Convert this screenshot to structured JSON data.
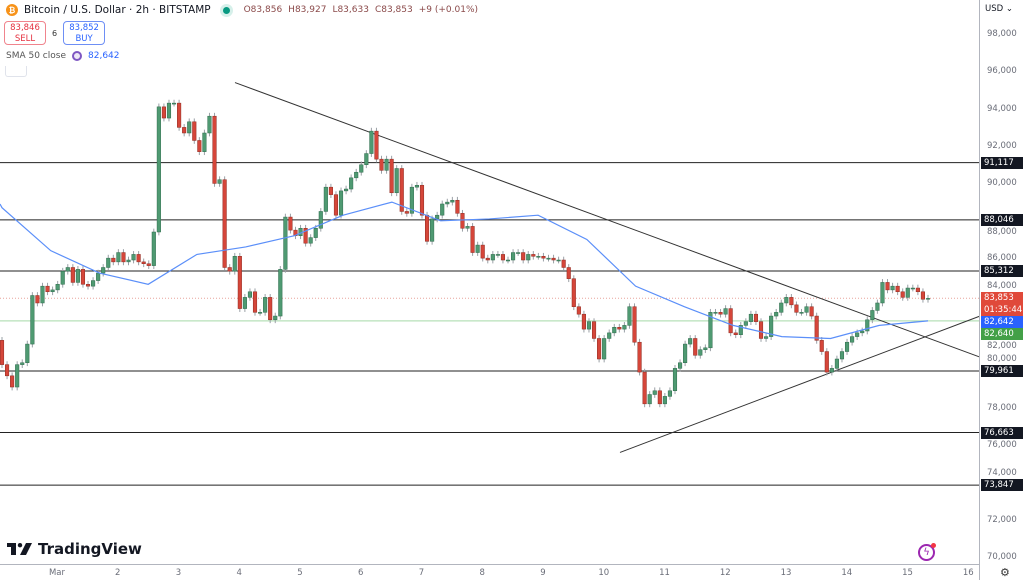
{
  "header": {
    "title": "Bitcoin / U.S. Dollar · 2h · BITSTAMP",
    "coin_icon": "bitcoin-icon",
    "open": "O83,856",
    "high": "H83,927",
    "low": "L83,633",
    "close": "C83,853",
    "change": "+9 (+0.01%)"
  },
  "trade": {
    "sell_price": "83,846",
    "sell_label": "SELL",
    "spread": "6",
    "buy_price": "83,852",
    "buy_label": "BUY"
  },
  "indicator": {
    "label": "SMA 50 close",
    "value": "82,642"
  },
  "branding": {
    "logo_text": "TradingView"
  },
  "axis": {
    "currency": "USD",
    "y_ticks": [
      "98,000",
      "96,000",
      "94,000",
      "92,000",
      "90,000",
      "88,000",
      "86,000",
      "84,000",
      "82,000",
      "80,000",
      "78,000",
      "76,000",
      "74,000",
      "72,000",
      "70,000"
    ],
    "x_ticks": [
      "Mar",
      "2",
      "3",
      "4",
      "5",
      "6",
      "7",
      "8",
      "9",
      "10",
      "11",
      "12",
      "13",
      "14",
      "15",
      "16"
    ]
  },
  "price_labels": {
    "last_price": "83,853",
    "countdown": "01:35:44",
    "sma_value": "82,642",
    "green_level": "82,640"
  },
  "colors": {
    "up": "#4f9a72",
    "down": "#d5463a",
    "sma": "#5b8ff9",
    "level_line": "#222222",
    "last_price": "#e0493a",
    "sma_label": "#2962ff",
    "green_label": "#43a047"
  },
  "chart_data": {
    "type": "candlestick",
    "title": "Bitcoin / U.S. Dollar · 2h · BITSTAMP",
    "ylim": [
      70000,
      98000
    ],
    "first_open": 81600,
    "closes": [
      80300,
      79700,
      79100,
      80300,
      80400,
      81400,
      84000,
      83600,
      84500,
      84200,
      84300,
      84600,
      85300,
      85500,
      84700,
      85400,
      84600,
      84500,
      84800,
      85200,
      85500,
      86000,
      85800,
      86300,
      85800,
      85900,
      86200,
      85800,
      85700,
      85600,
      87400,
      94100,
      93500,
      94300,
      94300,
      93000,
      92700,
      93300,
      92300,
      91700,
      92700,
      93600,
      90000,
      90200,
      85500,
      85300,
      86100,
      83300,
      83900,
      84200,
      83100,
      83100,
      83900,
      82700,
      82900,
      85400,
      88200,
      87500,
      87200,
      87600,
      86800,
      87100,
      87600,
      88500,
      89800,
      89400,
      88300,
      89600,
      89700,
      90300,
      90600,
      91000,
      91600,
      92800,
      91300,
      90700,
      91300,
      89500,
      90800,
      88500,
      88400,
      89800,
      89900,
      88300,
      86900,
      88100,
      88300,
      88900,
      89000,
      89100,
      88400,
      87600,
      87700,
      86300,
      86700,
      86000,
      85900,
      86200,
      86200,
      85900,
      85900,
      86300,
      86300,
      85900,
      86200,
      86100,
      86100,
      86000,
      86000,
      85900,
      85900,
      85500,
      84900,
      83400,
      83000,
      82200,
      82600,
      81700,
      80600,
      81700,
      82000,
      82300,
      82200,
      82400,
      83400,
      81500,
      79900,
      78200,
      78700,
      78900,
      78200,
      78600,
      78900,
      80100,
      80400,
      81400,
      81700,
      80800,
      81100,
      81200,
      83100,
      83100,
      83000,
      83300,
      82000,
      81900,
      82400,
      82600,
      83000,
      82600,
      81700,
      81800,
      82900,
      83100,
      83600,
      83900,
      83500,
      83100,
      83100,
      83400,
      82900,
      81600,
      81000,
      79900,
      80100,
      80600,
      81000,
      81500,
      81800,
      82000,
      82100,
      82700,
      83200,
      83600,
      84700,
      84300,
      84500,
      84200,
      83900,
      84400,
      84400,
      84200,
      83800,
      83853
    ],
    "sma50": [
      88700,
      86400,
      85200,
      84600,
      86200,
      86600,
      87200,
      88300,
      89000,
      88000,
      88100,
      88300,
      87000,
      84500,
      83400,
      82400,
      81800,
      81700,
      82400,
      82642
    ],
    "horizontal_levels": [
      91117,
      88046,
      85312,
      79961,
      76663,
      73847
    ],
    "green_level": 82640,
    "last_price": 83853,
    "trendlines": [
      {
        "name": "descending",
        "start_price": 95400,
        "end_price": 80700
      },
      {
        "name": "ascending",
        "start_price": 75600,
        "end_price": 82900
      }
    ]
  }
}
